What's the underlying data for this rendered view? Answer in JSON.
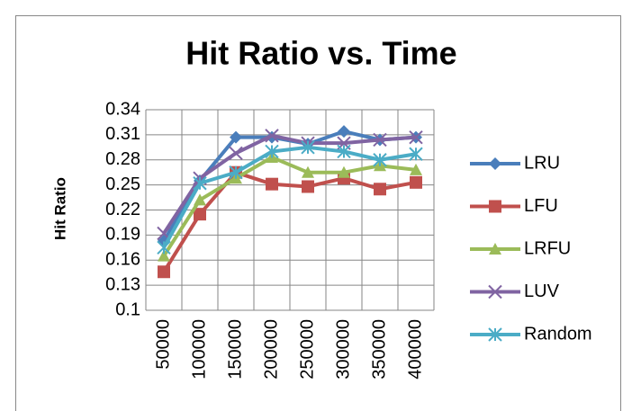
{
  "chart_data": {
    "type": "line",
    "title": "Hit Ratio vs. Time",
    "y_label": "Hit Ratio",
    "categories": [
      "50000",
      "100000",
      "150000",
      "200000",
      "250000",
      "300000",
      "350000",
      "400000"
    ],
    "series": [
      {
        "name": "LRU",
        "color": "#4a7ebb",
        "marker": "diamond",
        "values": [
          0.183,
          0.255,
          0.307,
          0.307,
          0.299,
          0.314,
          0.304,
          0.307
        ]
      },
      {
        "name": "LFU",
        "color": "#c0504d",
        "marker": "square",
        "values": [
          0.146,
          0.215,
          0.265,
          0.251,
          0.248,
          0.258,
          0.245,
          0.253
        ]
      },
      {
        "name": "LRFU",
        "color": "#9bbb59",
        "marker": "triangle",
        "values": [
          0.165,
          0.232,
          0.258,
          0.283,
          0.265,
          0.265,
          0.273,
          0.268
        ]
      },
      {
        "name": "LUV",
        "color": "#8064a2",
        "marker": "x",
        "values": [
          0.192,
          0.258,
          0.288,
          0.309,
          0.3,
          0.3,
          0.304,
          0.307
        ]
      },
      {
        "name": "Random",
        "color": "#4bacc6",
        "marker": "star",
        "values": [
          0.175,
          0.252,
          0.265,
          0.29,
          0.295,
          0.29,
          0.28,
          0.287
        ]
      }
    ],
    "ylim": [
      0.1,
      0.34
    ],
    "yticks": [
      0.1,
      0.13,
      0.16,
      0.19,
      0.22,
      0.25,
      0.28,
      0.31,
      0.34
    ],
    "grid": true,
    "legend": "right"
  }
}
